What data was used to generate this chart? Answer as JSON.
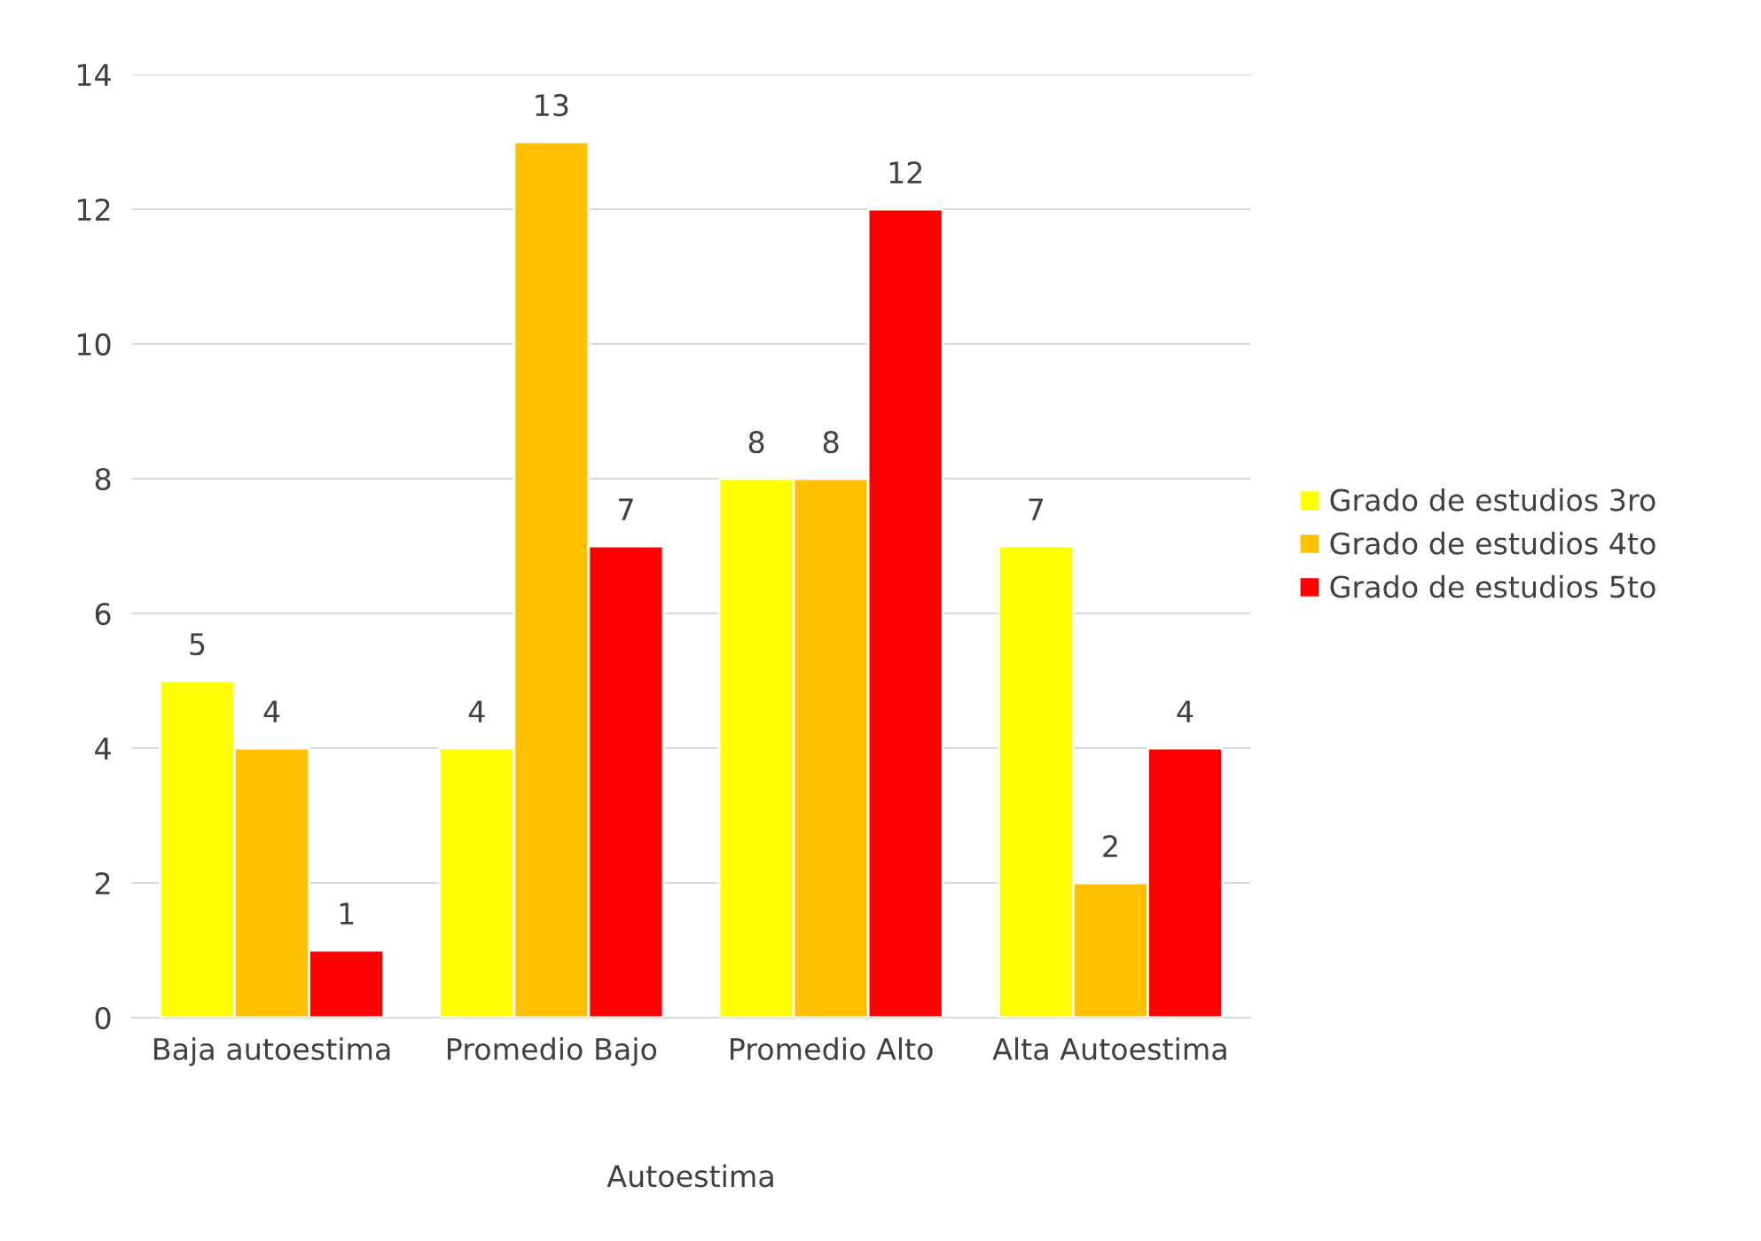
{
  "chart_data": {
    "type": "bar",
    "xlabel": "Autoestima",
    "categories": [
      "Baja autoestima",
      "Promedio Bajo",
      "Promedio Alto",
      "Alta Autoestima"
    ],
    "series": [
      {
        "name": "Grado de estudios 3ro",
        "color": "#ffff00",
        "values": [
          5,
          4,
          8,
          7
        ]
      },
      {
        "name": "Grado de estudios 4to",
        "color": "#ffc000",
        "values": [
          4,
          13,
          8,
          2
        ]
      },
      {
        "name": "Grado de estudios 5to",
        "color": "#ff0000",
        "values": [
          1,
          7,
          12,
          4
        ]
      }
    ],
    "ylim": [
      0,
      14
    ],
    "yticks": [
      0,
      2,
      4,
      6,
      8,
      10,
      12,
      14
    ],
    "grid": "y",
    "legend": "right",
    "data_labels": true
  }
}
